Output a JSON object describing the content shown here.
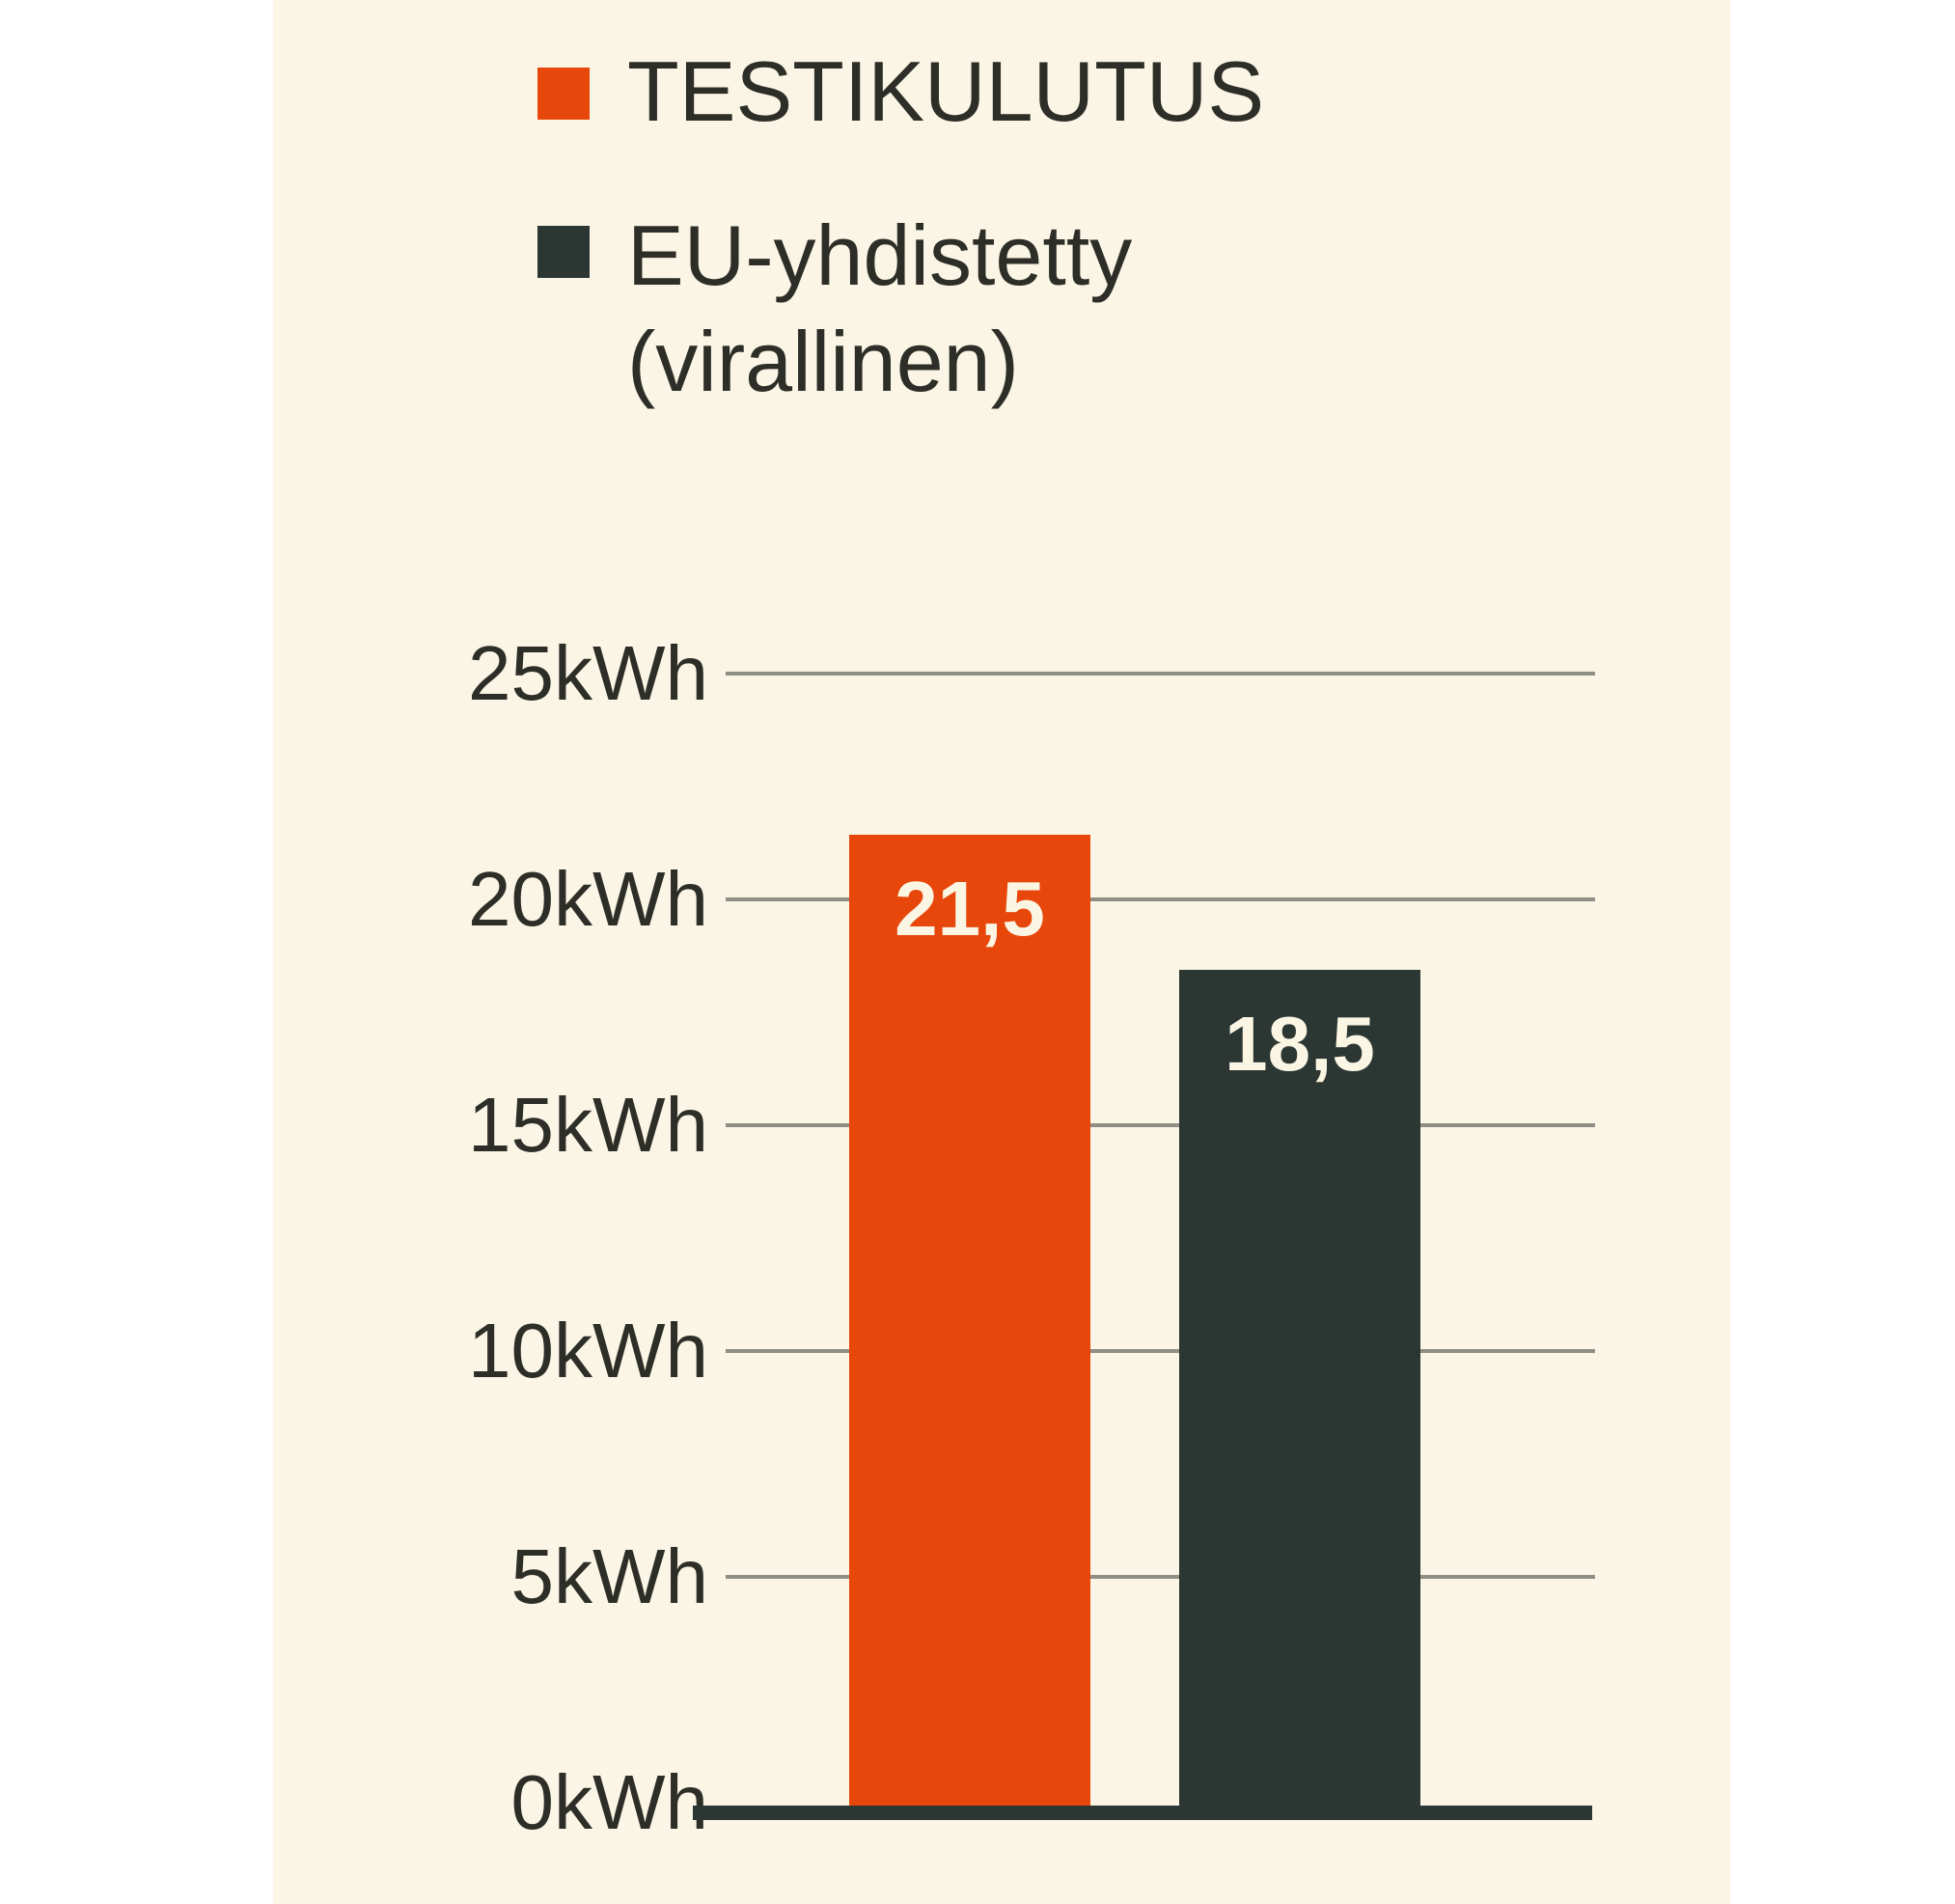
{
  "chart_data": {
    "type": "bar",
    "title": "",
    "unit": "kWh",
    "categories": [
      "TESTIKULUTUS",
      "EU-yhdistetty (virallinen)"
    ],
    "series": [
      {
        "name": "TESTIKULUTUS",
        "value": 21.5,
        "value_label": "21,5",
        "color": "#e8470b"
      },
      {
        "name": "EU-yhdistetty (virallinen)",
        "value": 18.5,
        "value_label": "18,5",
        "color": "#2c3734"
      }
    ],
    "y_axis": {
      "min": 0,
      "max": 25,
      "tick_step": 5,
      "ticks": [
        {
          "value": 25,
          "label": "25kWh"
        },
        {
          "value": 20,
          "label": "20kWh"
        },
        {
          "value": 15,
          "label": "15kWh"
        },
        {
          "value": 10,
          "label": "10kWh"
        },
        {
          "value": 5,
          "label": "5kWh"
        },
        {
          "value": 0,
          "label": "0kWh"
        }
      ]
    },
    "grid": true,
    "legend_position": "top-left",
    "legend": [
      {
        "color": "#e8470b",
        "lines": [
          "TESTIKULUTUS"
        ]
      },
      {
        "color": "#2c3734",
        "lines": [
          "EU-yhdistetty",
          "(virallinen)"
        ]
      }
    ],
    "colors": {
      "panel_background": "#faf5e4",
      "page_background": "#ffffff",
      "gridline": "#8e8e86",
      "axis_text": "#2e2e28",
      "baseline": "#2c3734",
      "bar_value_text": "#fbf6e4"
    }
  }
}
